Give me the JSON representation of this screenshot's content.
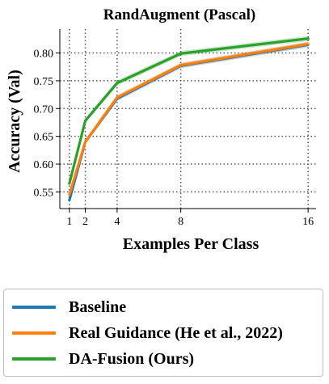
{
  "chart_data": {
    "type": "line",
    "title": "RandAugment (Pascal)",
    "xlabel": "Examples Per Class",
    "ylabel": "Accuracy (Val)",
    "x": [
      1,
      2,
      4,
      8,
      16
    ],
    "x_tick_labels": [
      "1",
      "2",
      "4",
      "8",
      "16"
    ],
    "y_ticks": [
      0.55,
      0.6,
      0.65,
      0.7,
      0.75,
      0.8
    ],
    "y_tick_labels": [
      "0.55",
      "0.60",
      "0.65",
      "0.70",
      "0.75",
      "0.80"
    ],
    "xlim": [
      0.4,
      16.5
    ],
    "ylim": [
      0.52,
      0.843
    ],
    "grid": "on (dotted, at x ticks and y ticks)",
    "legend_placement": "below",
    "series": [
      {
        "name": "Baseline",
        "color": "#1f77b4",
        "values": [
          0.535,
          0.64,
          0.718,
          0.777,
          0.815
        ]
      },
      {
        "name": "Real Guidance (He et al., 2022)",
        "color": "#ff7f0e",
        "values": [
          0.545,
          0.64,
          0.72,
          0.778,
          0.816
        ]
      },
      {
        "name": "DA-Fusion (Ours)",
        "color": "#2ca02c",
        "values": [
          0.565,
          0.678,
          0.746,
          0.799,
          0.826
        ]
      }
    ]
  }
}
